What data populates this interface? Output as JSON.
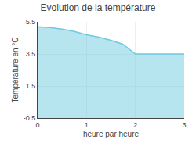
{
  "chart_data": {
    "type": "line",
    "title": "Evolution de la température",
    "xlabel": "heure par heure",
    "ylabel": "Température en °C",
    "x": [
      0,
      0.25,
      0.5,
      0.75,
      1.0,
      1.25,
      1.5,
      1.75,
      2.0,
      2.5,
      3.0
    ],
    "values": [
      5.2,
      5.15,
      5.05,
      4.9,
      4.7,
      4.55,
      4.35,
      4.1,
      3.5,
      3.5,
      3.5
    ],
    "color": "#6ecae0",
    "xlim": [
      0,
      3
    ],
    "ylim": [
      -0.5,
      5.5
    ],
    "xticks": [
      0,
      1,
      2,
      3
    ],
    "yticks": [
      -0.5,
      1.5,
      3.5,
      5.5
    ],
    "grid": true
  }
}
